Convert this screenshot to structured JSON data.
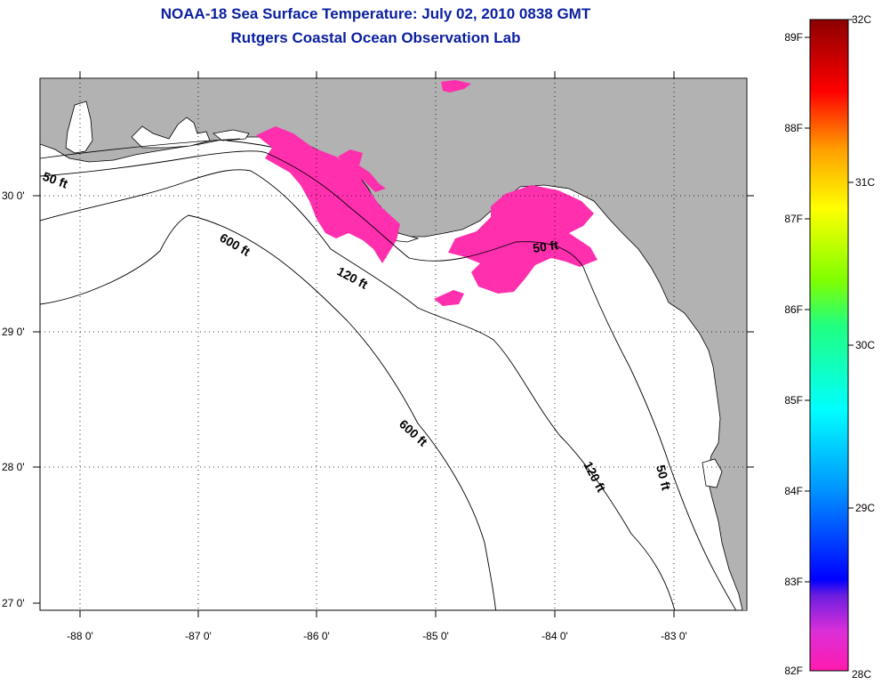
{
  "title": {
    "line1": "NOAA-18 Sea Surface Temperature:  July 02, 2010 0838 GMT",
    "line2": "Rutgers Coastal Ocean Observation Lab"
  },
  "map": {
    "land_color": "#b2b2b2",
    "sst_color": "#ff2fae",
    "lat_labels": [
      "30 0'",
      "29 0'",
      "28 0'",
      "27 0'"
    ],
    "lon_labels": [
      "-88 0'",
      "-87 0'",
      "-86 0'",
      "-85 0'",
      "-84 0'",
      "-83 0'"
    ],
    "contour_labels": {
      "c50_nw": "50 ft",
      "c600_n": "600 ft",
      "c120_n": "120 ft",
      "c50_e": "50 ft",
      "c600_s": "600 ft",
      "c120_s": "120 ft",
      "c50_s": "50 ft"
    }
  },
  "colorbar": {
    "fahrenheit": [
      "89F",
      "88F",
      "87F",
      "86F",
      "85F",
      "84F",
      "83F",
      "82F"
    ],
    "celsius": [
      "32C",
      "31C",
      "30C",
      "29C",
      "28C"
    ]
  }
}
